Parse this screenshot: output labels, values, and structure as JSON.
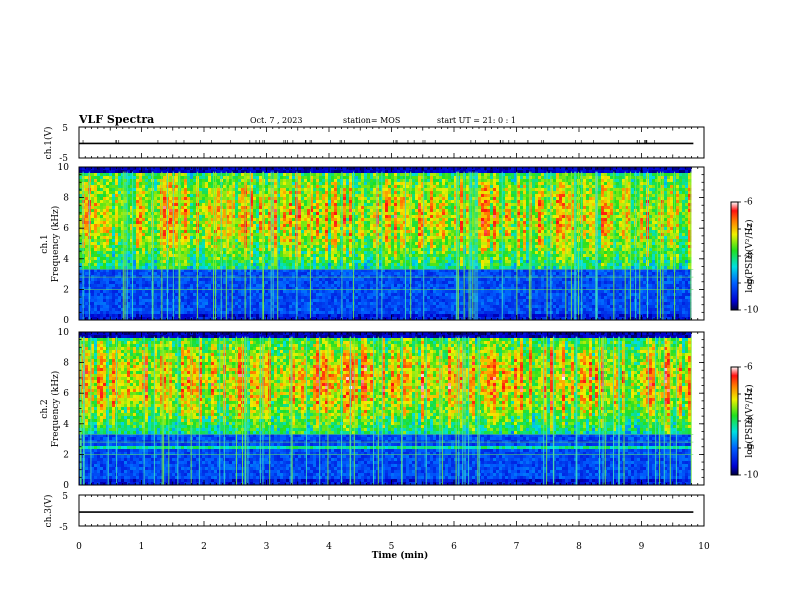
{
  "header": {
    "title": "VLF Spectra",
    "date": "Oct. 7 , 2023",
    "station": "station= MOS",
    "start": "start UT =  21: 0  : 1"
  },
  "chart_data": [
    {
      "type": "line",
      "name": "ch1-waveform",
      "ylabel": "ch.1(V)",
      "ylim": [
        -5,
        5
      ],
      "yticks": [
        "5",
        "-5"
      ],
      "xlim": [
        0,
        10
      ],
      "series": [
        {
          "x": [
            0,
            9.83
          ],
          "y": [
            -0.3,
            -0.3
          ]
        }
      ]
    },
    {
      "type": "heatmap",
      "name": "ch1-spectrogram",
      "ylabel_line1": "ch.1",
      "ylabel_line2": "Frequency (kHz)",
      "ylim": [
        0,
        10
      ],
      "yticks": [
        "0",
        "2",
        "4",
        "6",
        "8",
        "10"
      ],
      "xlim": [
        0,
        10
      ],
      "data_end_min": 9.83,
      "colorbar": {
        "range": [
          -10,
          -6
        ],
        "ticks": [
          "-6",
          "-7",
          "-8",
          "-9",
          "-10"
        ],
        "label": "log(PSD)(V²/Hz)"
      }
    },
    {
      "type": "heatmap",
      "name": "ch2-spectrogram",
      "ylabel_line1": "ch.2",
      "ylabel_line2": "Frequency (kHz)",
      "ylim": [
        0,
        10
      ],
      "yticks": [
        "0",
        "2",
        "4",
        "6",
        "8",
        "10"
      ],
      "xlim": [
        0,
        10
      ],
      "data_end_min": 9.83,
      "colorbar": {
        "range": [
          -10,
          -6
        ],
        "ticks": [
          "-6",
          "-7",
          "-8",
          "-9",
          "-10"
        ],
        "label": "log(PSD)(V²/Hz)"
      }
    },
    {
      "type": "line",
      "name": "ch3-waveform",
      "ylabel": "ch.3(V)",
      "ylim": [
        -5,
        5
      ],
      "yticks": [
        "5",
        "-5"
      ],
      "xlim": [
        0,
        10
      ],
      "xlabel": "Time (min)",
      "xticks": [
        "0",
        "1",
        "2",
        "3",
        "4",
        "5",
        "6",
        "7",
        "8",
        "9",
        "10"
      ],
      "series": [
        {
          "x": [
            0,
            9.83
          ],
          "y": [
            -0.5,
            -0.5
          ]
        }
      ]
    }
  ]
}
